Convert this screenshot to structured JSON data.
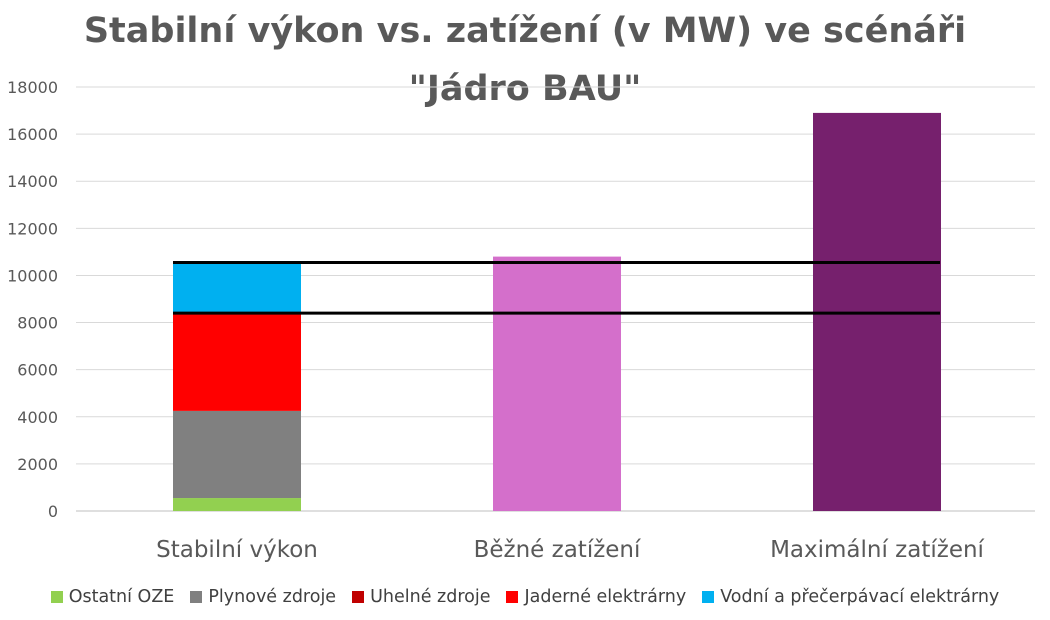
{
  "chart_data": {
    "type": "bar",
    "stacked": true,
    "title_lines": [
      "Stabilní výkon vs. zatížení (v MW) ve scénáři",
      "\"Jádro BAU\""
    ],
    "categories": [
      "Stabilní výkon",
      "Běžné zatížení",
      "Maximální zatížení"
    ],
    "ylim": [
      0,
      18000
    ],
    "yticks": [
      0,
      2000,
      4000,
      6000,
      8000,
      10000,
      12000,
      14000,
      16000,
      18000
    ],
    "grid": true,
    "legend_position": "bottom",
    "series": [
      {
        "name": "Ostatní OZE",
        "color": "#92D050",
        "values": [
          550,
          null,
          null
        ]
      },
      {
        "name": "Plynové zdroje",
        "color": "#808080",
        "values": [
          3700,
          null,
          null
        ]
      },
      {
        "name": "Uhelné zdroje",
        "color": "#C00000",
        "values": [
          0,
          null,
          null
        ]
      },
      {
        "name": "Jaderné elektrárny",
        "color": "#FF0000",
        "values": [
          4150,
          null,
          null
        ]
      },
      {
        "name": "Vodní a přečerpávací elektrárny",
        "color": "#00B0F0",
        "values": [
          2150,
          null,
          null
        ]
      }
    ],
    "load_bars": [
      {
        "category": "Běžné zatížení",
        "value": 10800,
        "color": "#D46FCB"
      },
      {
        "category": "Maximální zatížení",
        "value": 16900,
        "color": "#76206D"
      }
    ],
    "reference_lines": [
      {
        "value": 10550,
        "color": "#000000"
      },
      {
        "value": 8400,
        "color": "#000000"
      }
    ]
  }
}
